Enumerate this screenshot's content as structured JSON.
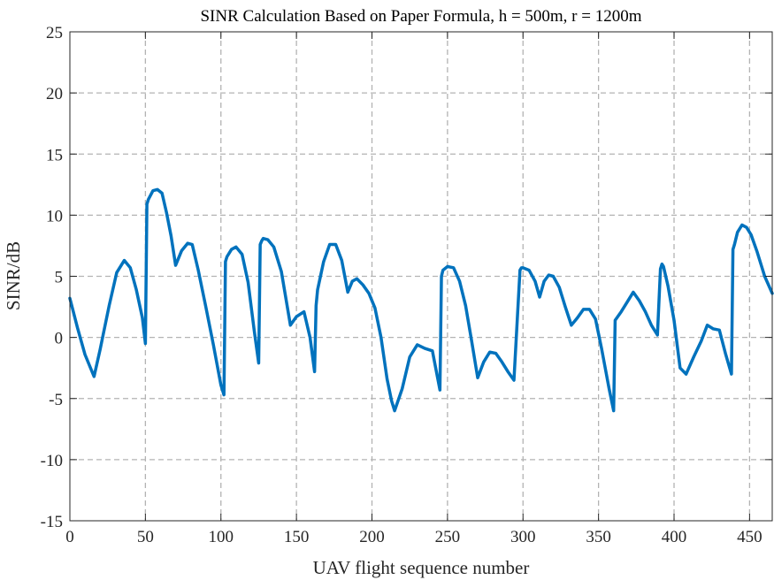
{
  "chart_data": {
    "type": "line",
    "title": "SINR Calculation Based on Paper Formula, h = 500m, r = 1200m",
    "xlabel": "UAV flight sequence number",
    "ylabel": "SINR/dB",
    "xlim": [
      0,
      465
    ],
    "ylim": [
      -15,
      25
    ],
    "xticks": [
      0,
      50,
      100,
      150,
      200,
      250,
      300,
      350,
      400,
      450
    ],
    "yticks": [
      -15,
      -10,
      -5,
      0,
      5,
      10,
      15,
      20,
      25
    ],
    "xtick_labels": [
      "0",
      "50",
      "100",
      "150",
      "200",
      "250",
      "300",
      "350",
      "400",
      "450"
    ],
    "ytick_labels": [
      "-15",
      "-10",
      "-5",
      "0",
      "5",
      "10",
      "15",
      "20",
      "25"
    ],
    "grid": true,
    "series_color": "#0072BD",
    "series": [
      {
        "x": [
          0,
          5,
          10,
          16,
          20,
          26,
          31,
          36,
          40,
          44,
          48,
          50,
          51,
          52,
          55,
          58,
          61,
          64,
          67,
          70,
          74,
          78,
          81,
          85,
          90,
          95,
          100,
          102,
          103,
          104,
          107,
          110,
          114,
          118,
          122,
          125,
          126,
          127,
          128,
          131,
          135,
          140,
          146,
          150,
          155,
          159,
          162,
          163,
          164,
          168,
          172,
          176,
          180,
          184,
          187,
          190,
          194,
          198,
          202,
          206,
          210,
          213,
          215,
          220,
          225,
          230,
          235,
          240,
          245,
          246,
          247,
          250,
          254,
          258,
          262,
          266,
          270,
          274,
          278,
          282,
          286,
          290,
          294,
          298,
          299,
          300,
          304,
          308,
          311,
          314,
          317,
          320,
          324,
          328,
          332,
          336,
          340,
          344,
          348,
          352,
          357,
          360,
          361,
          365,
          369,
          373,
          377,
          381,
          385,
          389,
          391,
          392,
          393,
          396,
          400,
          404,
          408,
          413,
          418,
          422,
          426,
          430,
          434,
          438,
          439,
          440,
          442,
          445,
          448,
          451,
          455,
          460,
          465
        ],
        "y": [
          3.2,
          0.8,
          -1.4,
          -3.2,
          -1.0,
          2.6,
          5.3,
          6.3,
          5.7,
          3.9,
          1.6,
          -0.5,
          10.9,
          11.3,
          12.0,
          12.1,
          11.8,
          10.2,
          8.3,
          5.9,
          7.1,
          7.7,
          7.6,
          5.5,
          2.5,
          -0.6,
          -3.9,
          -4.7,
          6.2,
          6.6,
          7.2,
          7.4,
          6.8,
          4.5,
          0.6,
          -2.1,
          7.6,
          7.9,
          8.1,
          8.0,
          7.4,
          5.4,
          1.0,
          1.7,
          2.1,
          0.0,
          -2.8,
          2.6,
          3.9,
          6.2,
          7.6,
          7.6,
          6.3,
          3.7,
          4.6,
          4.8,
          4.3,
          3.6,
          2.4,
          0.0,
          -3.4,
          -5.2,
          -6.0,
          -4.2,
          -1.6,
          -0.6,
          -0.9,
          -1.1,
          -4.3,
          5.0,
          5.5,
          5.8,
          5.7,
          4.6,
          2.6,
          -0.3,
          -3.3,
          -2.0,
          -1.2,
          -1.3,
          -2.0,
          -2.8,
          -3.5,
          5.5,
          5.7,
          5.7,
          5.5,
          4.6,
          3.3,
          4.6,
          5.1,
          5.0,
          4.1,
          2.5,
          1.0,
          1.6,
          2.3,
          2.3,
          1.5,
          -0.9,
          -4.2,
          -6.0,
          1.4,
          2.1,
          2.9,
          3.7,
          3.0,
          2.1,
          1.0,
          0.2,
          5.6,
          6.0,
          5.8,
          4.2,
          1.4,
          -2.5,
          -3.0,
          -1.6,
          -0.3,
          1.0,
          0.7,
          0.6,
          -1.3,
          -3.0,
          7.2,
          7.6,
          8.6,
          9.2,
          9.0,
          8.4,
          7.0,
          5.0,
          3.6
        ]
      }
    ]
  }
}
